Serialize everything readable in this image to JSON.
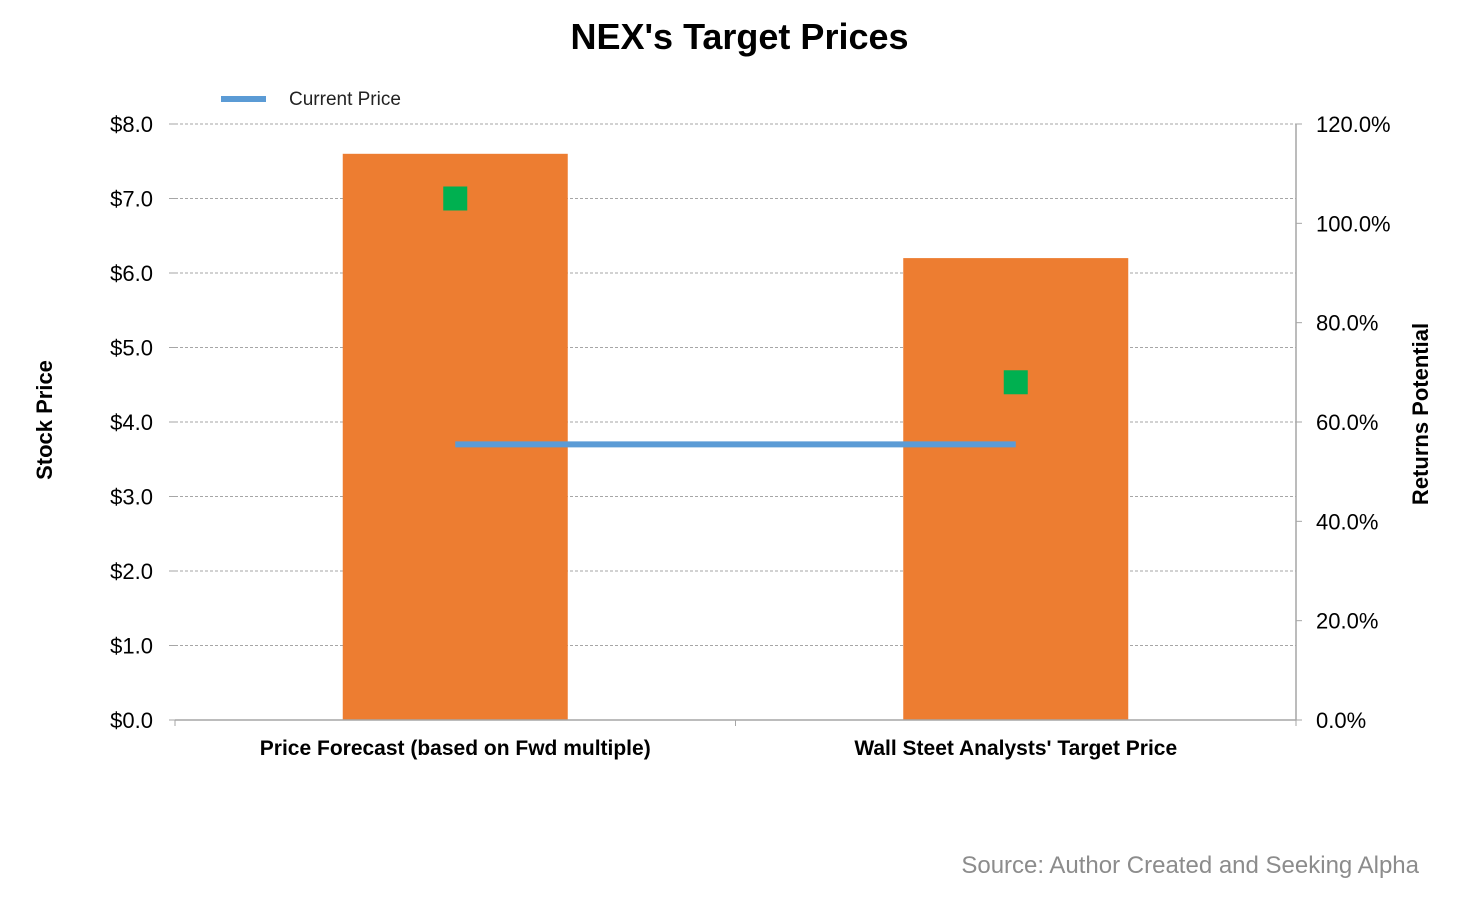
{
  "chart_data": {
    "type": "bar",
    "title": "NEX's Target Prices",
    "categories": [
      "Price Forecast (based on Fwd multiple)",
      "Wall Steet Analysts' Target Price"
    ],
    "series": [
      {
        "kind": "bar",
        "axis": "left",
        "values": [
          7.6,
          6.2
        ],
        "color": "#ED7D31"
      },
      {
        "kind": "line",
        "axis": "left",
        "name": "Current Price",
        "values": [
          3.7,
          3.7
        ],
        "color": "#5B9BD5"
      },
      {
        "kind": "marker",
        "axis": "right",
        "values": [
          105.0,
          68.0
        ],
        "color": "#00B050"
      }
    ],
    "ylabel": "Stock Price",
    "y2label": "Returns Potential",
    "ylim": [
      0,
      8
    ],
    "y2lim": [
      0,
      120
    ],
    "yticks": [
      "$0.0",
      "$1.0",
      "$2.0",
      "$3.0",
      "$4.0",
      "$5.0",
      "$6.0",
      "$7.0",
      "$8.0"
    ],
    "y2ticks": [
      "0.0%",
      "20.0%",
      "40.0%",
      "60.0%",
      "80.0%",
      "100.0%",
      "120.0%"
    ],
    "grid": true,
    "legend": {
      "position": "top-left",
      "entries": [
        "Current Price"
      ]
    }
  },
  "source": "Source: Author Created and Seeking Alpha"
}
